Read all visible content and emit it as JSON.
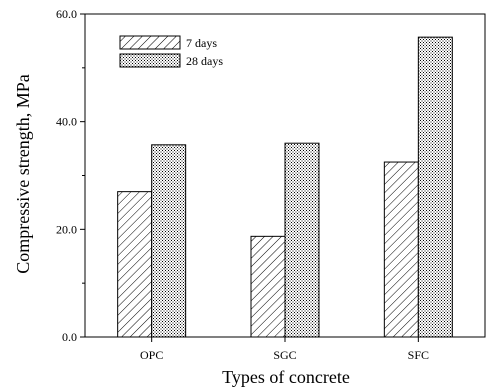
{
  "chart_data": {
    "type": "bar",
    "title": "",
    "xlabel": "Types of concrete",
    "ylabel": "Compressive strength, MPa",
    "categories": [
      "OPC",
      "SGC",
      "SFC"
    ],
    "series": [
      {
        "name": "7 days",
        "values": [
          27.0,
          18.7,
          32.5
        ],
        "pattern": "diagonal-hatch"
      },
      {
        "name": "28 days",
        "values": [
          35.7,
          36.0,
          55.7
        ],
        "pattern": "dots"
      }
    ],
    "ylim": [
      0,
      60
    ],
    "yticks": [
      "0.0",
      "20.0",
      "40.0",
      "60.0"
    ],
    "grid": false,
    "legend_position": "top-left",
    "colors": {
      "bar_stroke": "#000000",
      "fill": "#ffffff"
    }
  }
}
